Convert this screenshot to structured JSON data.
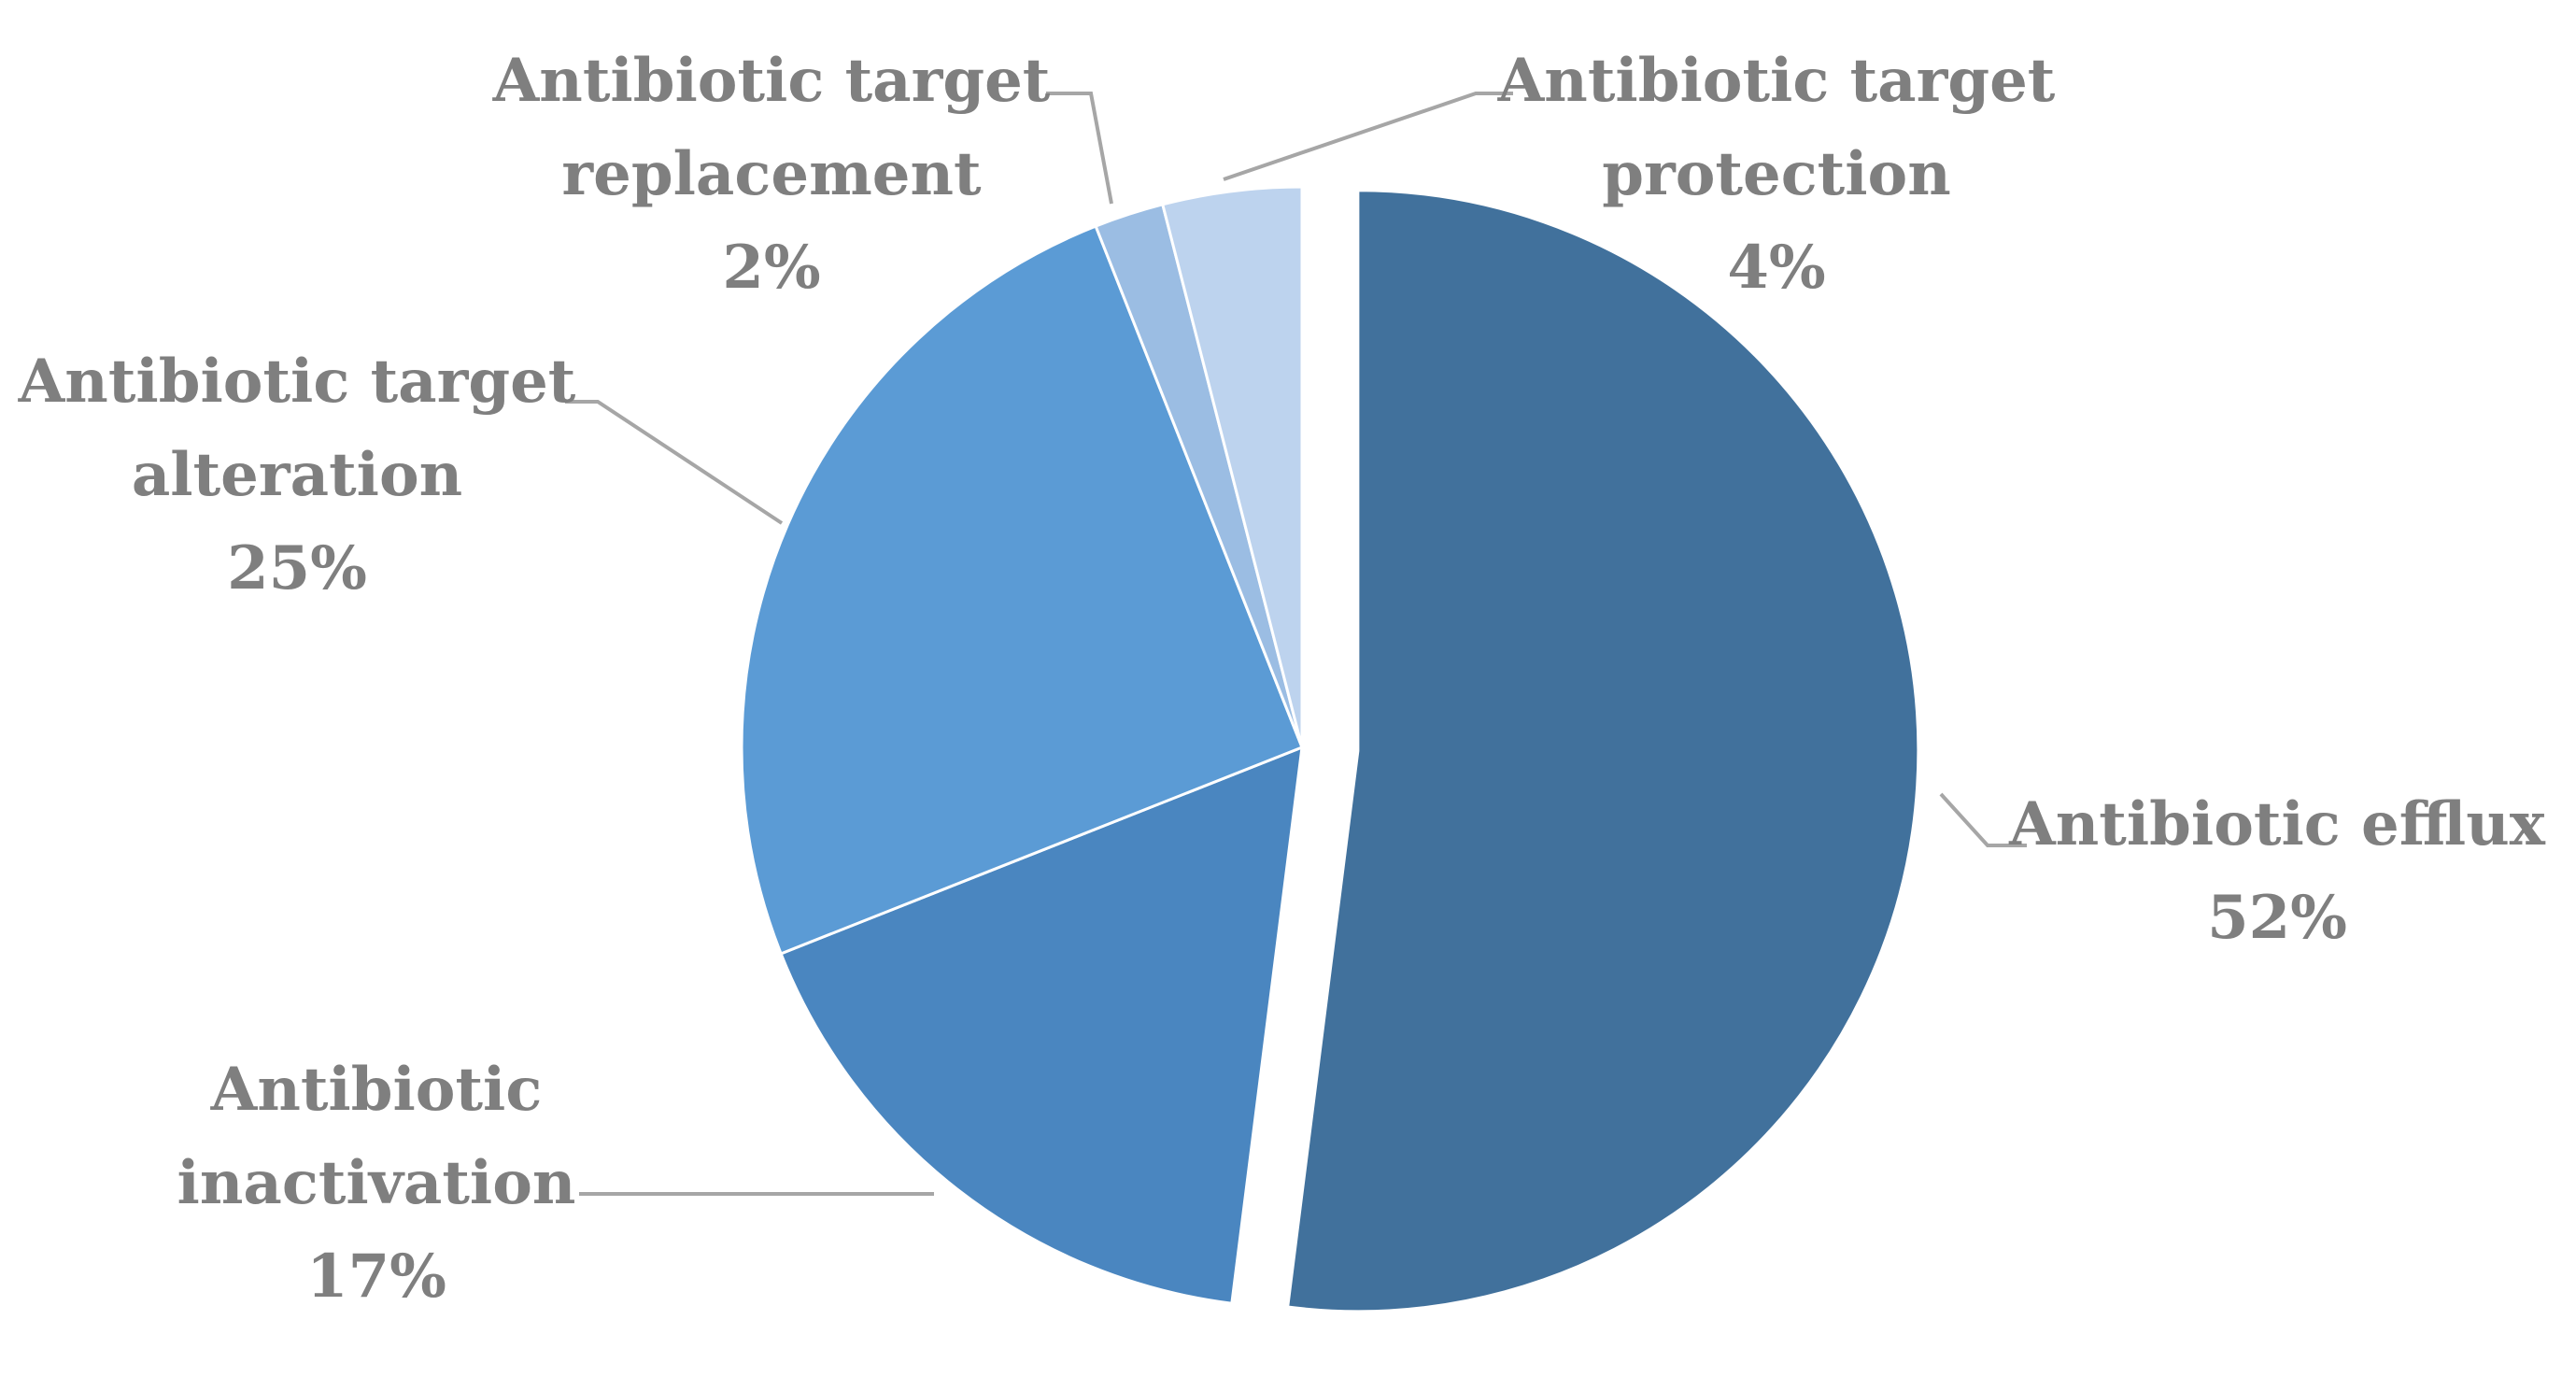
{
  "chart_data": {
    "type": "pie",
    "title": "",
    "slices": [
      {
        "label": [
          "Antibiotic efflux"
        ],
        "value": 52,
        "value_label": "52%",
        "color": "#41719c",
        "exploded": true
      },
      {
        "label": [
          "Antibiotic",
          "inactivation"
        ],
        "value": 17,
        "value_label": "17%",
        "color": "#4a86c0"
      },
      {
        "label": [
          "Antibiotic target",
          "alteration"
        ],
        "value": 25,
        "value_label": "25%",
        "color": "#5b9bd5"
      },
      {
        "label": [
          "Antibiotic target",
          "replacement"
        ],
        "value": 2,
        "value_label": "2%",
        "color": "#9bbde3"
      },
      {
        "label": [
          "Antibiotic target",
          "protection"
        ],
        "value": 4,
        "value_label": "4%",
        "color": "#bdd3ee"
      }
    ],
    "legend": "none",
    "data_labels": "outside-with-leader-lines"
  }
}
